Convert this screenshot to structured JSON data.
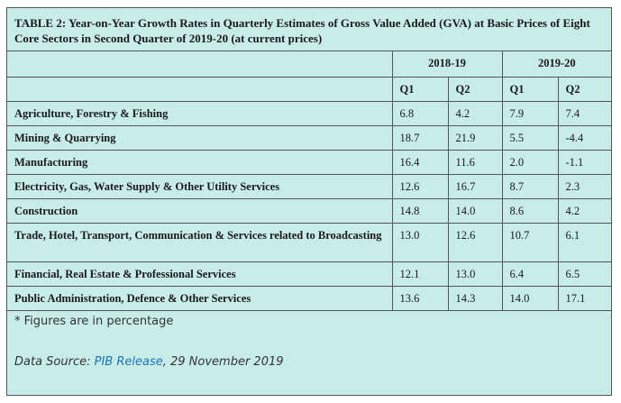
{
  "title": "TABLE 2: Year-on-Year Growth Rates in Quarterly Estimates of Gross Value Added (GVA) at Basic Prices of Eight Core Sectors in Second Quarter of 2019-20 (at current prices)",
  "years": [
    "2018-19",
    "2019-20"
  ],
  "quarters": [
    "Q1",
    "Q2",
    "Q1",
    "Q2"
  ],
  "rows": [
    {
      "sector": "Agriculture, Forestry & Fishing",
      "values": [
        "6.8",
        "4.2",
        "7.9",
        "7.4"
      ]
    },
    {
      "sector": "Mining & Quarrying",
      "values": [
        "18.7",
        "21.9",
        "5.5",
        "-4.4"
      ]
    },
    {
      "sector": "Manufacturing",
      "values": [
        "16.4",
        "11.6",
        "2.0",
        "-1.1"
      ]
    },
    {
      "sector": "Electricity, Gas, Water Supply & Other Utility Services",
      "values": [
        "12.6",
        "16.7",
        "8.7",
        "2.3"
      ]
    },
    {
      "sector": "Construction",
      "values": [
        "14.8",
        "14.0",
        "8.6",
        "4.2"
      ]
    },
    {
      "sector": "Trade, Hotel, Transport, Communication & Services related to Broadcasting",
      "values": [
        "13.0",
        "12.6",
        "10.7",
        "6.1"
      ]
    },
    {
      "sector": "Financial, Real Estate & Professional Services",
      "values": [
        "12.1",
        "13.0",
        "6.4",
        "6.5"
      ]
    },
    {
      "sector": "Public Administration, Defence & Other Services",
      "values": [
        "13.6",
        "14.3",
        "14.0",
        "17.1"
      ]
    }
  ],
  "note": "* Figures are in percentage",
  "source": {
    "prefix": "Data Source: ",
    "link_text": "PIB Release",
    "suffix": ", 29 November 2019"
  }
}
